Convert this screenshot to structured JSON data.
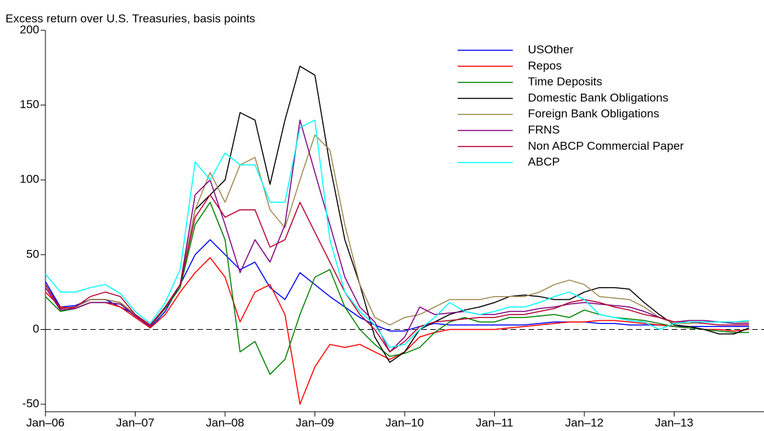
{
  "chart_data": {
    "type": "line",
    "y_label": "Excess return over U.S. Treasuries, basis points",
    "x": [
      "2006-01",
      "2006-03",
      "2006-05",
      "2006-07",
      "2006-09",
      "2006-11",
      "2007-01",
      "2007-03",
      "2007-05",
      "2007-07",
      "2007-09",
      "2007-11",
      "2008-01",
      "2008-03",
      "2008-05",
      "2008-07",
      "2008-09",
      "2008-11",
      "2009-01",
      "2009-03",
      "2009-05",
      "2009-07",
      "2009-09",
      "2009-11",
      "2010-01",
      "2010-03",
      "2010-05",
      "2010-07",
      "2010-09",
      "2010-11",
      "2011-01",
      "2011-03",
      "2011-05",
      "2011-07",
      "2011-09",
      "2011-11",
      "2012-01",
      "2012-03",
      "2012-05",
      "2012-07",
      "2012-09",
      "2012-11",
      "2013-01",
      "2013-03",
      "2013-05",
      "2013-07",
      "2013-09",
      "2013-11"
    ],
    "series": [
      {
        "name": "USOther",
        "color": "#0000ff",
        "values": [
          32,
          15,
          16,
          20,
          20,
          15,
          10,
          1,
          12,
          30,
          50,
          60,
          50,
          40,
          45,
          28,
          20,
          38,
          30,
          22,
          15,
          8,
          3,
          -1,
          -1,
          2,
          4,
          3,
          3,
          3,
          3,
          3,
          3,
          4,
          5,
          5,
          5,
          4,
          4,
          3,
          3,
          3,
          2,
          2,
          2,
          2,
          2,
          2
        ]
      },
      {
        "name": "Repos",
        "color": "#ff0000",
        "values": [
          25,
          15,
          14,
          18,
          18,
          15,
          8,
          1,
          10,
          25,
          38,
          48,
          35,
          5,
          25,
          30,
          10,
          -50,
          -25,
          -10,
          -12,
          -10,
          -15,
          -20,
          -15,
          -5,
          -2,
          0,
          0,
          0,
          0,
          1,
          2,
          3,
          4,
          5,
          5,
          6,
          6,
          5,
          4,
          3,
          2,
          1,
          0,
          0,
          -1,
          0
        ]
      },
      {
        "name": "Time Deposits",
        "color": "#008000",
        "values": [
          22,
          12,
          14,
          18,
          18,
          17,
          10,
          2,
          14,
          28,
          70,
          85,
          60,
          -15,
          -8,
          -30,
          -20,
          10,
          35,
          40,
          15,
          0,
          -10,
          -18,
          -16,
          -12,
          -2,
          5,
          8,
          5,
          5,
          8,
          8,
          9,
          10,
          8,
          13,
          10,
          8,
          7,
          6,
          4,
          2,
          1,
          0,
          -1,
          -2,
          -2
        ]
      },
      {
        "name": "Domestic Bank Obligations",
        "color": "#000000",
        "values": [
          30,
          14,
          15,
          20,
          20,
          18,
          10,
          2,
          15,
          30,
          80,
          90,
          100,
          145,
          140,
          97,
          140,
          176,
          170,
          110,
          60,
          30,
          -5,
          -22,
          -15,
          0,
          5,
          10,
          13,
          15,
          18,
          22,
          23,
          22,
          20,
          20,
          25,
          28,
          28,
          27,
          18,
          10,
          3,
          2,
          0,
          -3,
          -3,
          1
        ]
      },
      {
        "name": "Foreign Bank Obligations",
        "color": "#a08850",
        "values": [
          30,
          14,
          15,
          20,
          20,
          18,
          10,
          2,
          15,
          30,
          80,
          105,
          85,
          110,
          115,
          80,
          68,
          100,
          130,
          120,
          70,
          30,
          8,
          3,
          8,
          10,
          15,
          20,
          20,
          20,
          22,
          22,
          22,
          25,
          30,
          33,
          30,
          22,
          21,
          20,
          15,
          8,
          4,
          4,
          5,
          5,
          5,
          5
        ]
      },
      {
        "name": "FRNS",
        "color": "#800080",
        "values": [
          28,
          13,
          14,
          18,
          18,
          17,
          9,
          2,
          15,
          30,
          90,
          100,
          70,
          38,
          60,
          45,
          70,
          140,
          105,
          70,
          35,
          15,
          5,
          -15,
          -5,
          15,
          10,
          11,
          12,
          10,
          10,
          12,
          12,
          14,
          15,
          17,
          18,
          17,
          16,
          15,
          12,
          8,
          5,
          6,
          6,
          5,
          4,
          4
        ]
      },
      {
        "name": "Non ABCP Commercial Paper",
        "color": "#b00030",
        "values": [
          30,
          14,
          15,
          22,
          25,
          22,
          10,
          3,
          15,
          30,
          75,
          90,
          75,
          80,
          80,
          55,
          60,
          85,
          65,
          45,
          25,
          10,
          0,
          -15,
          -8,
          2,
          5,
          6,
          7,
          8,
          8,
          10,
          10,
          12,
          14,
          18,
          20,
          18,
          15,
          13,
          10,
          8,
          5,
          5,
          4,
          3,
          3,
          3
        ]
      },
      {
        "name": "ABCP",
        "color": "#00ffff",
        "values": [
          37,
          25,
          25,
          28,
          30,
          24,
          12,
          4,
          18,
          40,
          112,
          100,
          118,
          110,
          110,
          85,
          85,
          135,
          140,
          60,
          25,
          12,
          3,
          -12,
          -10,
          0,
          8,
          18,
          12,
          10,
          12,
          15,
          15,
          18,
          22,
          25,
          20,
          10,
          8,
          6,
          5,
          0,
          4,
          5,
          5,
          5,
          5,
          6
        ]
      }
    ],
    "xlim": [
      "2006-01",
      "2014-01"
    ],
    "xticks": [
      {
        "value": "2006-01",
        "label": "Jan–06"
      },
      {
        "value": "2007-01",
        "label": "Jan–07"
      },
      {
        "value": "2008-01",
        "label": "Jan–08"
      },
      {
        "value": "2009-01",
        "label": "Jan–09"
      },
      {
        "value": "2010-01",
        "label": "Jan–10"
      },
      {
        "value": "2011-01",
        "label": "Jan–11"
      },
      {
        "value": "2012-01",
        "label": "Jan–12"
      },
      {
        "value": "2013-01",
        "label": "Jan–13"
      }
    ],
    "ylim": [
      -55,
      200
    ],
    "yticks": [
      -50,
      0,
      50,
      100,
      150,
      200
    ],
    "zero_line": true,
    "legend": "upper right"
  }
}
